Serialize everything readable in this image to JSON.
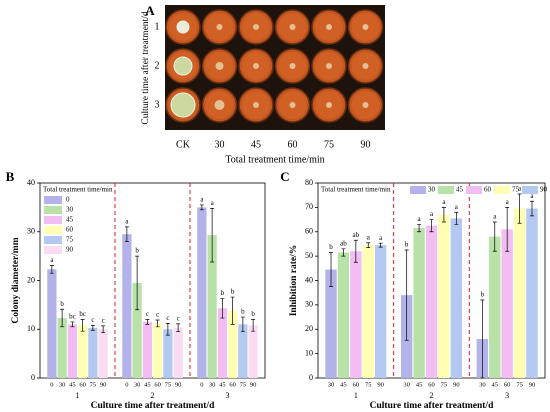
{
  "panel_a": {
    "label": "A",
    "row_labels": [
      "1",
      "2",
      "3"
    ],
    "col_labels": [
      "CK",
      "30",
      "45",
      "60",
      "75",
      "90"
    ],
    "ylabel": "Culture time after treatment/d",
    "xlabel": "Total treatment time/min"
  },
  "chart_data": [
    {
      "type": "bar",
      "panel": "B",
      "ylabel": "Colony diameter/mm",
      "xlabel": "Culture time after treatment/d",
      "legend_title": "Total treatment time/min",
      "legend": "upper left",
      "categories": [
        "1",
        "2",
        "3"
      ],
      "ylim": [
        0,
        40
      ],
      "yticks": [
        0,
        10,
        20,
        30,
        40
      ],
      "series": [
        {
          "name": "0",
          "color": "#b3b3ea",
          "values": [
            22.3,
            29.5,
            35
          ],
          "errors": [
            0.8,
            1.5,
            0.5
          ],
          "labels": [
            "a",
            "a",
            "a"
          ]
        },
        {
          "name": "30",
          "color": "#b9e2a9",
          "values": [
            12.3,
            19.5,
            29.3
          ],
          "errors": [
            1.8,
            5.5,
            5.5
          ],
          "labels": [
            "b",
            "b",
            "a"
          ]
        },
        {
          "name": "45",
          "color": "#f2bdf2",
          "values": [
            11,
            11.5,
            14.3
          ],
          "errors": [
            0.5,
            0.5,
            2
          ],
          "labels": [
            "bc",
            "c",
            "b"
          ]
        },
        {
          "name": "60",
          "color": "#ffffb3",
          "values": [
            10.8,
            11.2,
            13.8
          ],
          "errors": [
            1.2,
            0.7,
            2.8
          ],
          "labels": [
            "bc",
            "c",
            "b"
          ]
        },
        {
          "name": "75",
          "color": "#b3c9f2",
          "values": [
            10.3,
            10,
            11
          ],
          "errors": [
            0.5,
            1.2,
            1.5
          ],
          "labels": [
            "c",
            "c",
            "b"
          ]
        },
        {
          "name": "90",
          "color": "#f9dcf2",
          "values": [
            10,
            10.3,
            10.8
          ],
          "errors": [
            0.7,
            0.8,
            1.2
          ],
          "labels": [
            "c",
            "c",
            "b"
          ]
        }
      ]
    },
    {
      "type": "bar",
      "panel": "C",
      "ylabel": "Inhibition rate/%",
      "xlabel": "Culture time after treatment/d",
      "legend_title": "Total treatment time/min",
      "legend": "upper row",
      "categories": [
        "1",
        "2",
        "3"
      ],
      "ylim": [
        0,
        80
      ],
      "yticks": [
        0,
        10,
        20,
        30,
        40,
        50,
        60,
        70,
        80
      ],
      "series": [
        {
          "name": "30",
          "color": "#b3b3ea",
          "values": [
            44.5,
            34,
            16
          ],
          "errors": [
            7,
            18.5,
            16
          ],
          "labels": [
            "b",
            "b",
            "b"
          ]
        },
        {
          "name": "45",
          "color": "#b9e2a9",
          "values": [
            51.5,
            61.5,
            58
          ],
          "errors": [
            1.5,
            1.5,
            6
          ],
          "labels": [
            "ab",
            "a",
            "a"
          ]
        },
        {
          "name": "60",
          "color": "#f2bdf2",
          "values": [
            52,
            62.5,
            61
          ],
          "errors": [
            4.5,
            2.5,
            9
          ],
          "labels": [
            "ab",
            "a",
            "a"
          ]
        },
        {
          "name": "75",
          "color": "#ffffb3",
          "values": [
            54.5,
            67,
            69.5
          ],
          "errors": [
            1,
            3,
            6
          ],
          "labels": [
            "a",
            "a",
            "a"
          ]
        },
        {
          "name": "90",
          "color": "#b3c9f2",
          "values": [
            54.5,
            65.5,
            69.5
          ],
          "errors": [
            0.8,
            2.5,
            3
          ],
          "labels": [
            "a",
            "a",
            "a"
          ]
        }
      ]
    }
  ]
}
